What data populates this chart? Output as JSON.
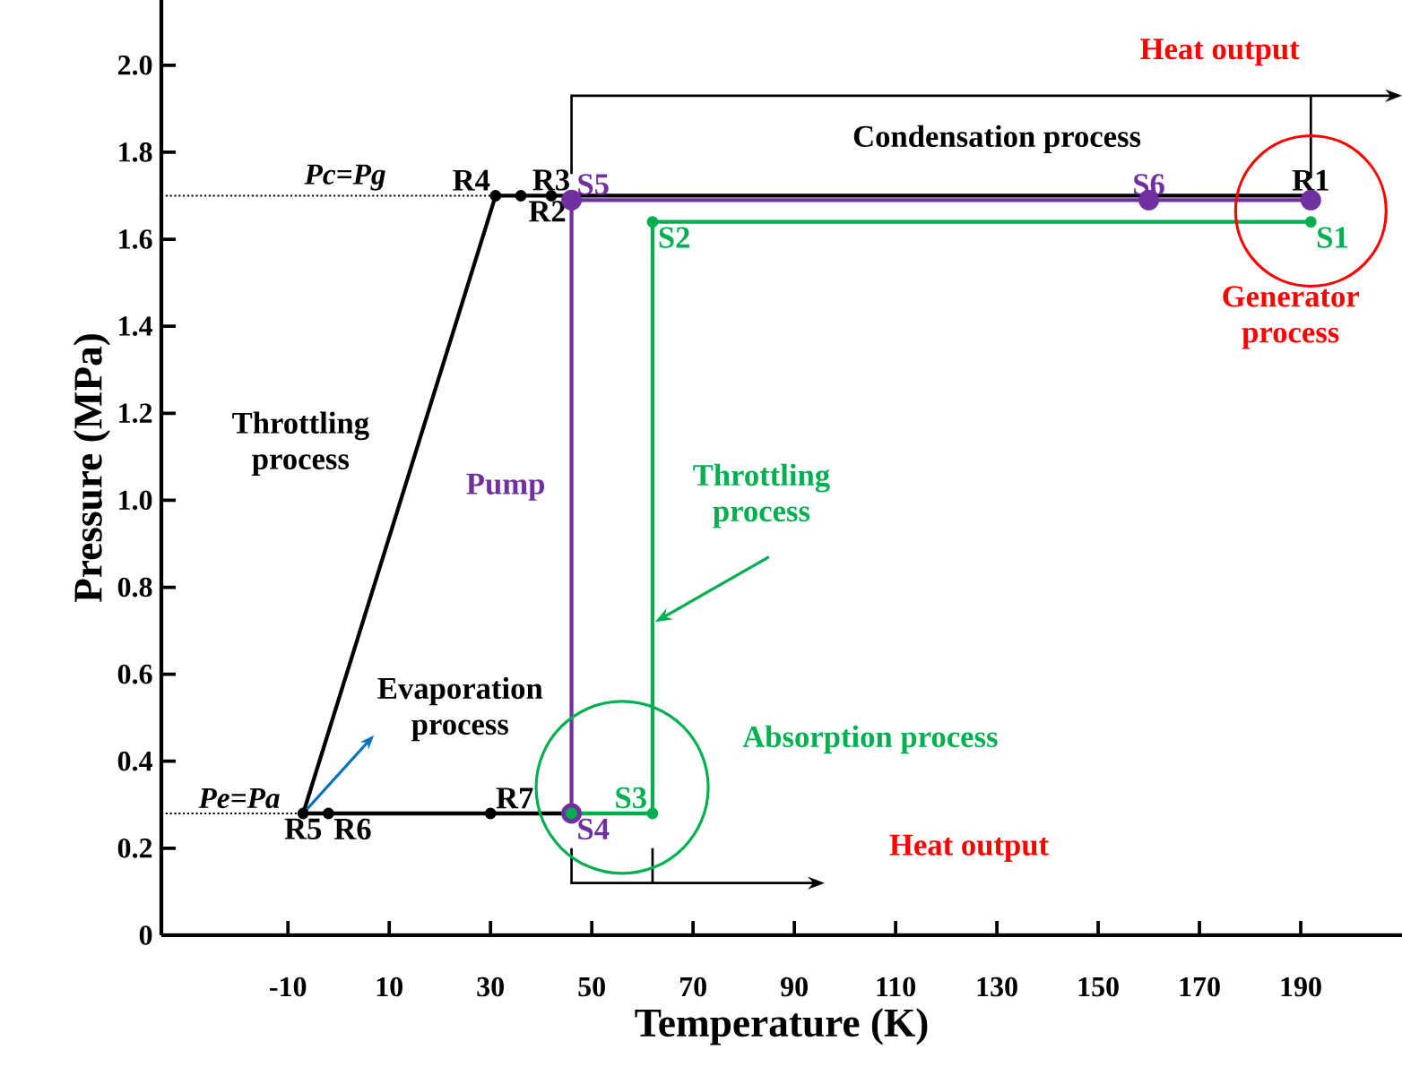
{
  "chart_data": {
    "type": "line",
    "xlabel": "Temperature (K)",
    "ylabel": "Pressure (MPa)",
    "xlim": [
      -35,
      210
    ],
    "ylim": [
      0,
      2.15
    ],
    "xticks": [
      -10,
      10,
      30,
      50,
      70,
      90,
      110,
      130,
      150,
      170,
      190
    ],
    "yticks": [
      0,
      0.2,
      0.4,
      0.6,
      0.8,
      {
        "value": 1.0,
        "label": "1.0"
      },
      1.2,
      1.4,
      1.6,
      1.8,
      {
        "value": 2.0,
        "label": "2.0"
      }
    ],
    "grid": false,
    "marker": "circle",
    "line_style": "solid",
    "series": [
      {
        "color": "#000000",
        "x": [
          192,
          46,
          42,
          36,
          31,
          -7,
          -2,
          30,
          46
        ],
        "values": [
          1.7,
          1.7,
          1.7,
          1.7,
          1.7,
          0.28,
          0.28,
          0.28,
          0.28
        ],
        "value_labels": [
          "R1",
          "R2",
          "R3",
          null,
          "R4",
          "R5",
          "R6",
          "R7",
          null
        ]
      },
      {
        "color": "#7030a0",
        "x": [
          46,
          46,
          160,
          192
        ],
        "values": [
          0.28,
          1.69,
          1.69,
          1.69
        ],
        "value_labels": [
          "S4",
          "S5",
          "S6",
          null
        ]
      },
      {
        "color": "#00b050",
        "x": [
          192,
          62,
          62,
          46
        ],
        "values": [
          1.64,
          1.64,
          0.28,
          0.28
        ],
        "value_labels": [
          "S1",
          "S2",
          "S3",
          null
        ]
      }
    ],
    "ref_lines": [
      {
        "axis": "y",
        "value": 1.7,
        "label": "Pc=Pg",
        "line_style": "dotted",
        "color": "#000000"
      },
      {
        "axis": "y",
        "value": 0.28,
        "label": "Pe=Pa",
        "line_style": "dotted",
        "color": "#000000"
      }
    ],
    "annotations": [
      "Heat output",
      "Condensation process",
      "Generator process",
      "Throttling process",
      "Pump",
      {
        "text": "Throttling process",
        "x": 62,
        "y": 0.72
      },
      "Evaporation process",
      "Absorption process",
      "Heat output"
    ]
  }
}
